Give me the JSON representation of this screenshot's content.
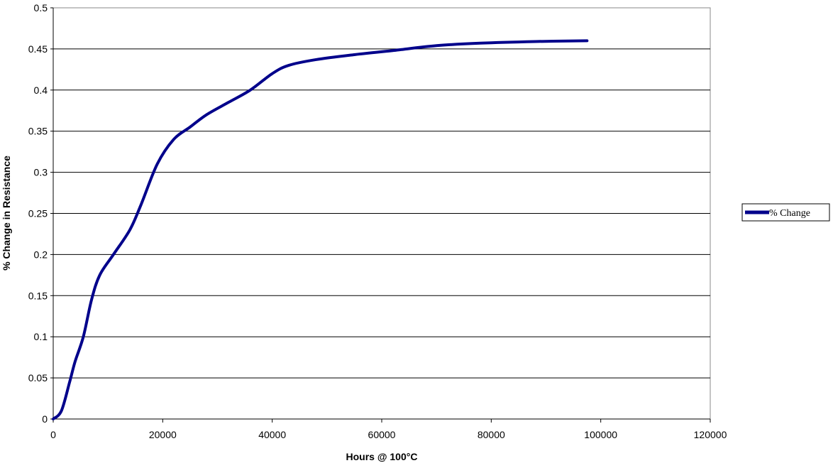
{
  "chart_data": {
    "type": "line",
    "title": "",
    "xlabel": "Hours @ 100°C",
    "ylabel": "% Change in Resistance",
    "xlim": [
      0,
      120000
    ],
    "ylim": [
      0,
      0.5
    ],
    "xticks": [
      0,
      20000,
      40000,
      60000,
      80000,
      100000,
      120000
    ],
    "xtick_labels": [
      "0",
      "20000",
      "40000",
      "60000",
      "80000",
      "100000",
      "120000"
    ],
    "yticks": [
      0,
      0.05,
      0.1,
      0.15,
      0.2,
      0.25,
      0.3,
      0.35,
      0.4,
      0.45,
      0.5
    ],
    "ytick_labels": [
      "0",
      "0.05",
      "0.1",
      "0.15",
      "0.2",
      "0.25",
      "0.3",
      "0.35",
      "0.4",
      "0.45",
      "0.5"
    ],
    "grid": "horizontal",
    "legend": "right",
    "series": [
      {
        "name": "% Change",
        "color": "#00008B",
        "x": [
          0,
          1500,
          3000,
          4000,
          5500,
          7000,
          8500,
          11000,
          14000,
          16000,
          19000,
          22000,
          25000,
          28000,
          32000,
          36000,
          40000,
          43000,
          48000,
          55000,
          62000,
          70000,
          78000,
          88000,
          97500
        ],
        "y": [
          0,
          0.01,
          0.045,
          0.07,
          0.1,
          0.145,
          0.175,
          0.2,
          0.23,
          0.26,
          0.31,
          0.34,
          0.355,
          0.37,
          0.385,
          0.4,
          0.42,
          0.43,
          0.437,
          0.443,
          0.448,
          0.454,
          0.457,
          0.459,
          0.46
        ]
      }
    ]
  }
}
